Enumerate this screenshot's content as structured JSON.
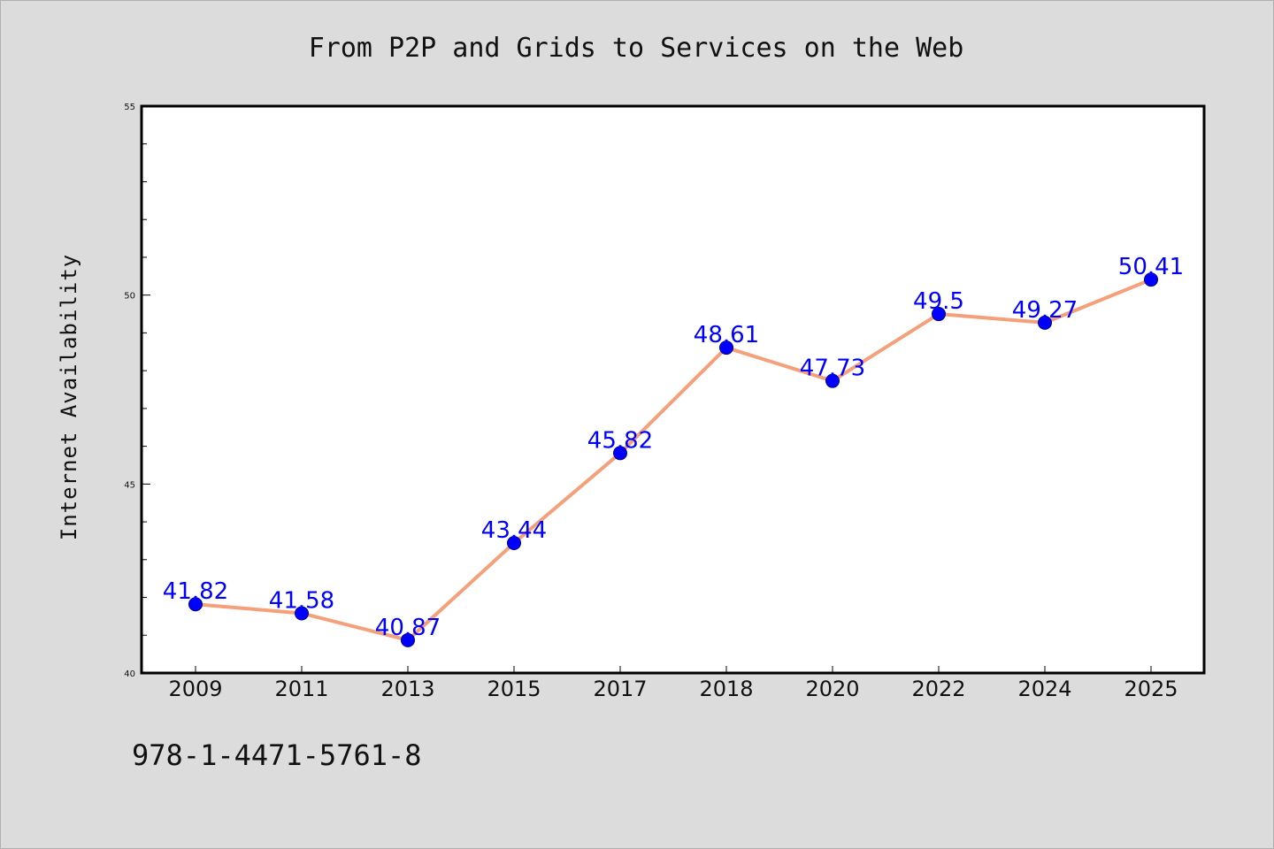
{
  "chart_data": {
    "type": "line",
    "title": "From P2P and Grids to Services on the Web",
    "xlabel": "",
    "ylabel": "Internet Availability",
    "categories": [
      "2009",
      "2011",
      "2013",
      "2015",
      "2017",
      "2018",
      "2020",
      "2022",
      "2024",
      "2025"
    ],
    "series": [
      {
        "values": [
          41.82,
          41.58,
          40.87,
          43.44,
          45.82,
          48.61,
          47.73,
          49.5,
          49.27,
          50.41
        ],
        "data_labels": [
          "41.82",
          "41.58",
          "40.87",
          "43.44",
          "45.82",
          "48.61",
          "47.73",
          "49.5",
          "49.27",
          "50.41"
        ]
      }
    ],
    "ylim": [
      40,
      55
    ],
    "yticks": [
      "40",
      "45",
      "50",
      "55"
    ],
    "grid": false,
    "colors": {
      "line": "#f4a07a",
      "marker": "#0000ff",
      "data_label": "#0000ff",
      "plot_background": "#ffffff",
      "figure_background": "#dcdcdc"
    }
  },
  "footer": {
    "text": "978-1-4471-5761-8"
  }
}
